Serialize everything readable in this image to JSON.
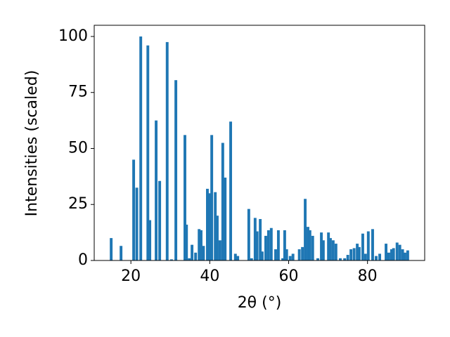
{
  "chart_data": {
    "type": "bar",
    "x_label": "2θ (°)",
    "y_label": "Intensities (scaled)",
    "color": "#1f77b4",
    "x": [
      15.0,
      17.5,
      20.7,
      21.5,
      22.5,
      24.3,
      24.8,
      26.4,
      27.3,
      29.2,
      30.3,
      31.4,
      33.7,
      34.1,
      34.8,
      35.5,
      36.4,
      37.3,
      37.8,
      38.4,
      39.4,
      40.0,
      40.5,
      41.4,
      41.9,
      42.6,
      43.3,
      43.9,
      45.3,
      46.5,
      47.1,
      49.9,
      50.6,
      51.5,
      52.0,
      52.8,
      53.3,
      54.2,
      54.9,
      55.6,
      56.7,
      57.4,
      58.5,
      59.0,
      59.5,
      60.4,
      61.1,
      62.7,
      63.5,
      64.2,
      64.9,
      65.4,
      66.1,
      67.4,
      68.3,
      68.8,
      70.1,
      70.6,
      71.3,
      72.0,
      73.1,
      74.2,
      75.0,
      75.8,
      76.6,
      77.4,
      77.9,
      78.8,
      79.5,
      80.2,
      81.3,
      82.2,
      83.1,
      84.7,
      85.4,
      86.1,
      86.6,
      87.5,
      88.2,
      88.9,
      89.5,
      90.2
    ],
    "values": [
      10,
      6.5,
      45,
      32.5,
      100,
      96,
      18,
      62.5,
      35.5,
      97.5,
      0.5,
      80.5,
      56,
      16,
      1,
      7,
      3.5,
      14,
      13.5,
      6.5,
      32,
      30,
      56,
      30.5,
      20,
      9,
      52.5,
      37,
      62,
      3,
      2,
      23,
      1,
      19,
      13,
      18.5,
      4,
      11,
      13.5,
      14.5,
      5,
      13.5,
      1,
      13.5,
      5,
      2,
      3,
      5,
      6,
      27.5,
      15,
      13.5,
      11,
      1,
      12.5,
      9,
      12.5,
      10,
      9,
      7.5,
      1,
      1,
      2.5,
      5,
      5.5,
      7.5,
      6,
      12,
      3,
      13,
      14,
      2,
      3,
      7.5,
      3.5,
      5,
      5.5,
      8,
      7,
      5,
      3.5,
      4.5
    ],
    "xlim": [
      10.7,
      94.5
    ],
    "ylim": [
      0,
      105
    ],
    "xticks": [
      20,
      40,
      60,
      80
    ],
    "yticks": [
      0,
      25,
      50,
      75,
      100
    ]
  }
}
